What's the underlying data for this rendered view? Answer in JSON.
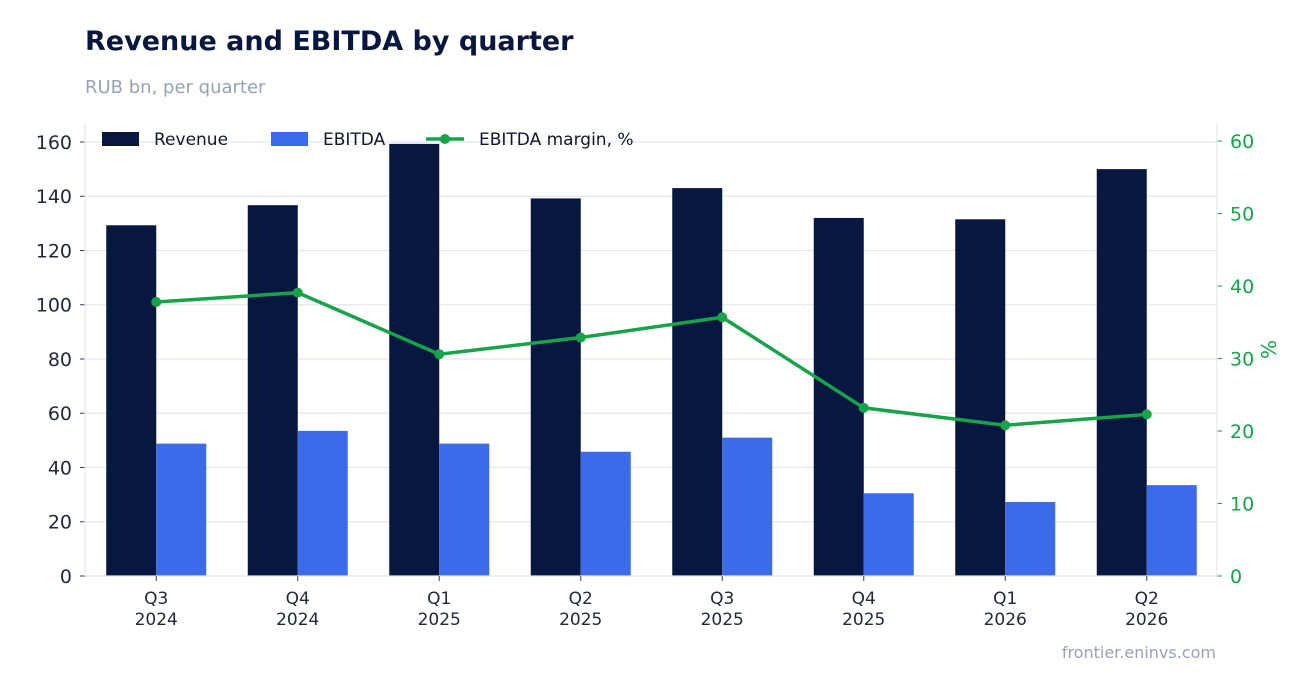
{
  "header": {
    "title": "Revenue and EBITDA by quarter",
    "subtitle": "RUB bn, per quarter"
  },
  "footer": {
    "source": "frontier.eninvs.com"
  },
  "colors": {
    "revenue": "#07173f",
    "ebitda": "#3b6be8",
    "margin": "#16a34a",
    "grid": "#e2e8f0",
    "axis_text": "#1f2937"
  },
  "chart_data": {
    "type": "bar",
    "categories": [
      "Q3\n2024",
      "Q4\n2024",
      "Q1\n2025",
      "Q2\n2025",
      "Q3\n2025",
      "Q4\n2025",
      "Q1\n2026",
      "Q2\n2026"
    ],
    "series": [
      {
        "name": "Revenue",
        "type": "bar",
        "axis": "left",
        "values": [
          129.3,
          136.7,
          159.3,
          139.2,
          143.0,
          132.0,
          131.5,
          150.0
        ]
      },
      {
        "name": "EBITDA",
        "type": "bar",
        "axis": "left",
        "values": [
          48.8,
          53.5,
          48.8,
          45.8,
          51.0,
          30.5,
          27.3,
          33.5
        ]
      },
      {
        "name": "EBITDA margin, %",
        "type": "line",
        "axis": "right",
        "values": [
          37.8,
          39.1,
          30.6,
          32.9,
          35.7,
          23.2,
          20.8,
          22.3
        ]
      }
    ],
    "ylim": [
      0,
      167
    ],
    "y_ticks": [
      0,
      20,
      40,
      60,
      80,
      100,
      120,
      140,
      160
    ],
    "y2lim": [
      0,
      62.5
    ],
    "y2_ticks": [
      0,
      10,
      20,
      30,
      40,
      50,
      60
    ],
    "ylabel": "",
    "y2label": "%",
    "grid": true,
    "legend_position": "top-left"
  }
}
